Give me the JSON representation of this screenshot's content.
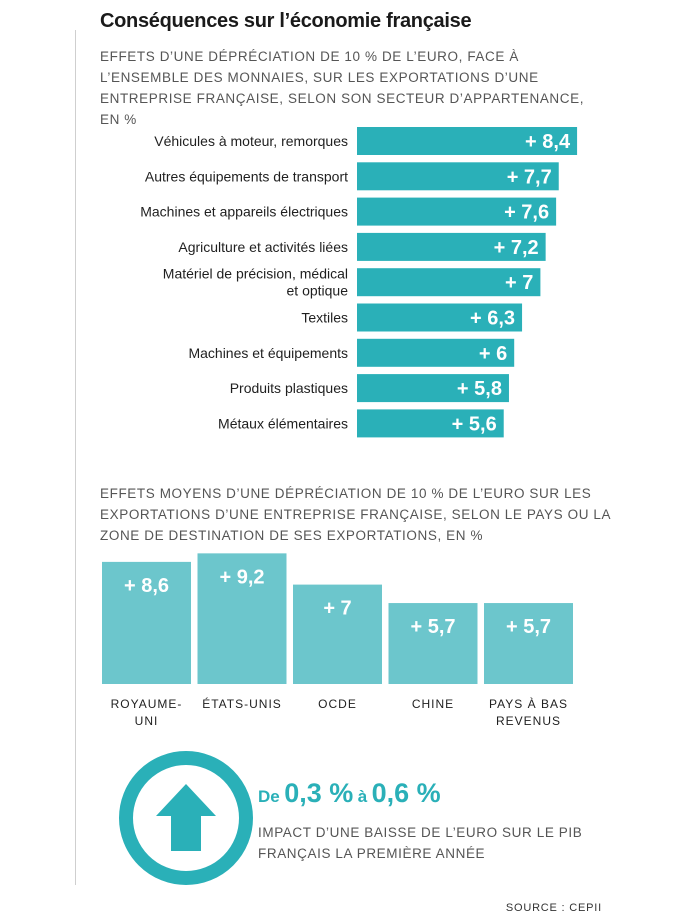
{
  "title": "Conséquences sur l’économie française",
  "chart1": {
    "subtitle": "EFFETS D’UNE DÉPRÉCIATION DE 10 % DE L’EURO, FACE À L’ENSEMBLE DES MONNAIES, SUR LES EXPORTATIONS D’UNE ENTREPRISE FRANÇAISE, SELON SON SECTEUR D’APPARTENANCE, EN %"
  },
  "chart2": {
    "subtitle": "EFFETS MOYENS D’UNE DÉPRÉCIATION DE 10 % DE L’EURO SUR LES EXPORTATIONS D’UNE ENTREPRISE FRANÇAISE, SELON LE PAYS OU LA ZONE DE DESTINATION DE SES EXPORTATIONS, EN %"
  },
  "chart_data": [
    {
      "type": "bar",
      "orientation": "horizontal",
      "categories": [
        [
          "Véhicules à moteur, remorques"
        ],
        [
          "Autres équipements de transport"
        ],
        [
          "Machines et appareils électriques"
        ],
        [
          "Agriculture et activités liées"
        ],
        [
          "Matériel de précision, médical",
          "et optique"
        ],
        [
          "Textiles"
        ],
        [
          "Machines et équipements"
        ],
        [
          "Produits plastiques"
        ],
        [
          "Métaux élémentaires"
        ]
      ],
      "values": [
        8.4,
        7.7,
        7.6,
        7.2,
        7,
        6.3,
        6,
        5.8,
        5.6
      ],
      "value_labels": [
        "+ 8,4",
        "+ 7,7",
        "+ 7,6",
        "+ 7,2",
        "+ 7",
        "+ 6,3",
        "+ 6",
        "+ 5,8",
        "+ 5,6"
      ],
      "color": "#2ab0b8"
    },
    {
      "type": "bar",
      "orientation": "vertical",
      "categories": [
        [
          "ROYAUME-",
          "UNI"
        ],
        [
          "ÉTATS-UNIS"
        ],
        [
          "OCDE"
        ],
        [
          "CHINE"
        ],
        [
          "PAYS À BAS",
          "REVENUS"
        ]
      ],
      "values": [
        8.6,
        9.2,
        7,
        5.7,
        5.7
      ],
      "value_labels": [
        "+ 8,6",
        "+ 9,2",
        "+ 7",
        "+ 5,7",
        "+ 5,7"
      ],
      "color": "#6cc6cc"
    }
  ],
  "impact": {
    "prefix": "De",
    "low": "0,3 %",
    "connector": "à",
    "high": "0,6 %",
    "caption": "IMPACT D’UNE BAISSE DE L’EURO SUR LE PIB FRANÇAIS LA PREMIÈRE ANNÉE",
    "icon": "up-arrow-circle-icon",
    "color": "#2ab0b8"
  },
  "source": "SOURCE : CEPII"
}
